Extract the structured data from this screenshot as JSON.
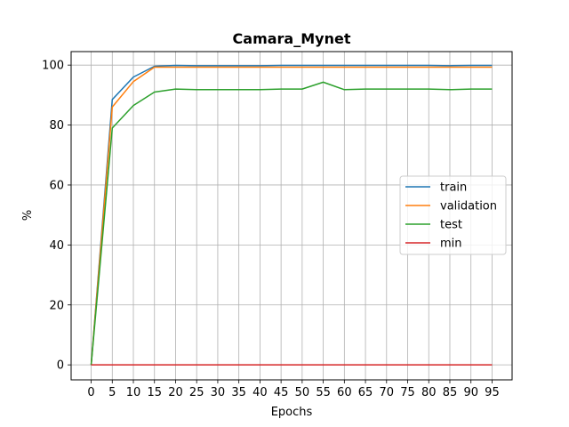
{
  "chart_data": {
    "type": "line",
    "title": "Camara_Mynet",
    "xlabel": "Epochs",
    "ylabel": "%",
    "x": [
      0,
      5,
      10,
      15,
      20,
      25,
      30,
      35,
      40,
      45,
      50,
      55,
      60,
      65,
      70,
      75,
      80,
      85,
      90,
      95
    ],
    "xticks": [
      "0",
      "5",
      "10",
      "15",
      "20",
      "25",
      "30",
      "35",
      "40",
      "45",
      "50",
      "55",
      "60",
      "65",
      "70",
      "75",
      "80",
      "85",
      "90",
      "95"
    ],
    "yticks": [
      "0",
      "20",
      "40",
      "60",
      "80",
      "100"
    ],
    "xlim": [
      -4.75,
      99.75
    ],
    "ylim": [
      -5,
      104.5
    ],
    "grid": true,
    "legend_position": "center-right",
    "series": [
      {
        "name": "train",
        "color": "#1f77b4",
        "values": [
          0,
          88.5,
          96.0,
          99.6,
          99.9,
          99.8,
          99.8,
          99.8,
          99.8,
          99.9,
          99.9,
          99.9,
          99.9,
          99.9,
          99.9,
          99.9,
          99.9,
          99.8,
          99.9,
          99.9
        ]
      },
      {
        "name": "validation",
        "color": "#ff7f0e",
        "values": [
          0,
          86.0,
          94.5,
          99.3,
          99.3,
          99.3,
          99.3,
          99.3,
          99.3,
          99.3,
          99.3,
          99.3,
          99.3,
          99.3,
          99.3,
          99.3,
          99.3,
          99.3,
          99.3,
          99.3
        ]
      },
      {
        "name": "test",
        "color": "#2ca02c",
        "values": [
          0,
          79.0,
          86.5,
          91.0,
          92.0,
          91.8,
          91.8,
          91.8,
          91.8,
          92.0,
          92.0,
          94.3,
          91.8,
          92.0,
          92.0,
          92.0,
          92.0,
          91.8,
          92.0,
          92.0
        ]
      },
      {
        "name": "min",
        "color": "#d62728",
        "values": [
          0,
          0,
          0,
          0,
          0,
          0,
          0,
          0,
          0,
          0,
          0,
          0,
          0,
          0,
          0,
          0,
          0,
          0,
          0,
          0
        ]
      }
    ]
  }
}
